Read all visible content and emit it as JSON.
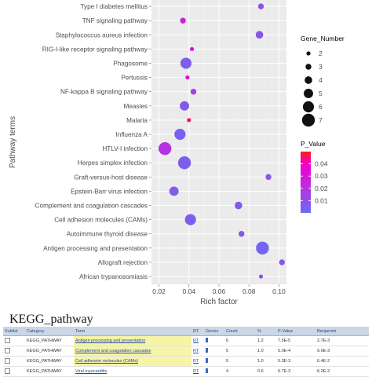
{
  "chart_data": {
    "type": "scatter",
    "title": "",
    "xlabel": "Rich factor",
    "ylabel": "Pathway terms",
    "xlim": [
      0.015,
      0.105
    ],
    "xticks": [
      0.02,
      0.04,
      0.06,
      0.08,
      0.1
    ],
    "xtick_labels": [
      "0.02",
      "0.04",
      "0.06",
      "0.08",
      "0.10"
    ],
    "grid": true,
    "background": "#ebebeb",
    "categories": [
      "Type I diabetes mellitus",
      "TNF signaling pathway",
      "Staphylococcus aureus infection",
      "RIG-I-like receptor signaling pathway",
      "Phagosome",
      "Pertussis",
      "NF-kappa B signaling pathway",
      "Measles",
      "Malaria",
      "Influenza A",
      "HTLV-I infection",
      "Herpes simplex infection",
      "Graft-versus-host disease",
      "Epstein-Barr virus infection",
      "Complement and coagulation cascades",
      "Cell adhesion molecules (CAMs)",
      "Autoimmune thyroid disease",
      "Antigen processing and presentation",
      "Allograft rejection",
      "African trypanosomiasis"
    ],
    "points": [
      {
        "term": "Type I diabetes mellitus",
        "rich_factor": 0.088,
        "gene_number": 3,
        "p_value": 0.01
      },
      {
        "term": "TNF signaling pathway",
        "rich_factor": 0.036,
        "gene_number": 3,
        "p_value": 0.025
      },
      {
        "term": "Staphylococcus aureus infection",
        "rich_factor": 0.087,
        "gene_number": 4,
        "p_value": 0.008
      },
      {
        "term": "RIG-I-like receptor signaling pathway",
        "rich_factor": 0.042,
        "gene_number": 2,
        "p_value": 0.03
      },
      {
        "term": "Phagosome",
        "rich_factor": 0.038,
        "gene_number": 6,
        "p_value": 0.005
      },
      {
        "term": "Pertussis",
        "rich_factor": 0.039,
        "gene_number": 2,
        "p_value": 0.032
      },
      {
        "term": "NF-kappa B signaling pathway",
        "rich_factor": 0.043,
        "gene_number": 3,
        "p_value": 0.015
      },
      {
        "term": "Measles",
        "rich_factor": 0.037,
        "gene_number": 5,
        "p_value": 0.006
      },
      {
        "term": "Malaria",
        "rich_factor": 0.04,
        "gene_number": 2,
        "p_value": 0.046
      },
      {
        "term": "Influenza A",
        "rich_factor": 0.034,
        "gene_number": 6,
        "p_value": 0.004
      },
      {
        "term": "HTLV-I infection",
        "rich_factor": 0.024,
        "gene_number": 7,
        "p_value": 0.02
      },
      {
        "term": "Herpes simplex infection",
        "rich_factor": 0.037,
        "gene_number": 7,
        "p_value": 0.005
      },
      {
        "term": "Graft-versus-host disease",
        "rich_factor": 0.093,
        "gene_number": 3,
        "p_value": 0.007
      },
      {
        "term": "Epstein-Barr virus infection",
        "rich_factor": 0.03,
        "gene_number": 5,
        "p_value": 0.006
      },
      {
        "term": "Complement and coagulation cascades",
        "rich_factor": 0.073,
        "gene_number": 4,
        "p_value": 0.006
      },
      {
        "term": "Cell adhesion molecules (CAMs)",
        "rich_factor": 0.041,
        "gene_number": 6,
        "p_value": 0.005
      },
      {
        "term": "Autoimmune thyroid disease",
        "rich_factor": 0.075,
        "gene_number": 3,
        "p_value": 0.008
      },
      {
        "term": "Antigen processing and presentation",
        "rich_factor": 0.089,
        "gene_number": 7,
        "p_value": 0.003
      },
      {
        "term": "Allograft rejection",
        "rich_factor": 0.102,
        "gene_number": 3,
        "p_value": 0.007
      },
      {
        "term": "African trypanosomiasis",
        "rich_factor": 0.088,
        "gene_number": 2,
        "p_value": 0.01
      }
    ],
    "size_legend": {
      "title": "Gene_Number",
      "values": [
        2,
        3,
        4,
        5,
        6,
        7
      ],
      "labels": [
        "2",
        "3",
        "4",
        "5",
        "6",
        "7"
      ]
    },
    "color_legend": {
      "title": "P_Value",
      "range": [
        0.0,
        0.05
      ],
      "ticks": [
        0.04,
        0.03,
        0.02,
        0.01
      ],
      "tick_labels": [
        "0.04",
        "0.03",
        "0.02",
        "0.01"
      ],
      "low_color": "#6a6cf2",
      "high_color": "#ff1a1a",
      "mid_color": "#ee00cc"
    },
    "legend_position": "right"
  },
  "caption": "KEGG_pathway",
  "table": {
    "headers": [
      "Sublist",
      "Category",
      "Term",
      "RT",
      "Genes",
      "Count",
      "%",
      "P-Value",
      "Benjamini"
    ],
    "rows": [
      {
        "category": "KEGG_PATHWAY",
        "term": "Antigen processing and presentation",
        "rt": "RT",
        "count": "6",
        "pct": "1.2",
        "p": "7.5E-5",
        "benjamini": "2.7E-3",
        "hl": true
      },
      {
        "category": "KEGG_PATHWAY",
        "term": "Complement and coagulation cascades",
        "rt": "RT",
        "count": "5",
        "pct": "1.0",
        "p": "5.0E-4",
        "benjamini": "9.0E-3",
        "hl": true
      },
      {
        "category": "KEGG_PATHWAY",
        "term": "Cell adhesion molecules (CAMs)",
        "rt": "RT",
        "count": "5",
        "pct": "1.0",
        "p": "5.3E-3",
        "benjamini": "6.4E-2",
        "hl": true
      },
      {
        "category": "KEGG_PATHWAY",
        "term": "Viral myocarditis",
        "rt": "RT",
        "count": "4",
        "pct": "0.6",
        "p": "6.7E-3",
        "benjamini": "6.2E-2",
        "hl": false
      }
    ]
  }
}
